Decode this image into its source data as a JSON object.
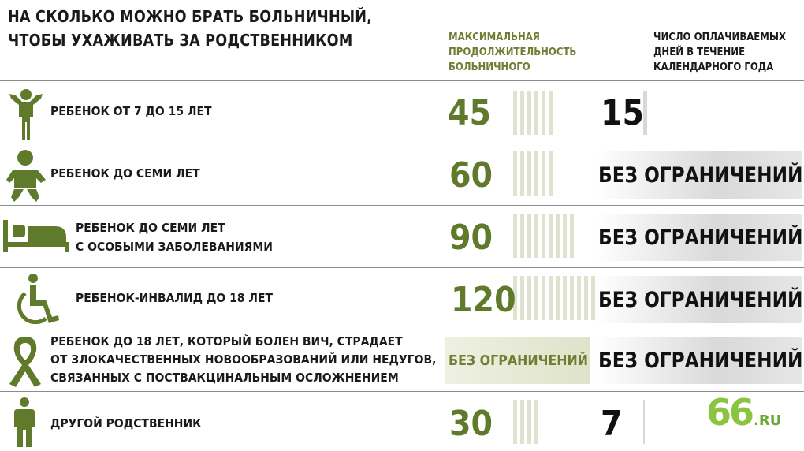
{
  "header": {
    "title_line1": "НА СКОЛЬКО МОЖНО БРАТЬ БОЛЬНИЧНЫЙ,",
    "title_line2": "ЧТОБЫ УХАЖИВАТЬ ЗА РОДСТВЕННИКОМ",
    "col_max_line1": "МАКСИМАЛЬНАЯ",
    "col_max_line2": "ПРОДОЛЖИТЕЛЬНОСТЬ",
    "col_max_line3": "БОЛЬНИЧНОГО",
    "col_paid_line1": "ЧИСЛО ОПЛАЧИВАЕМЫХ",
    "col_paid_line2": "ДНЕЙ В ТЕЧЕНИЕ",
    "col_paid_line3": "КАЛЕНДАРНОГО ГОДА"
  },
  "rows": [
    {
      "icon": "child-icon",
      "label": [
        "РЕБЕНОК ОТ 7 ДО 15 ЛЕТ"
      ],
      "max": "45",
      "paid": "15"
    },
    {
      "icon": "baby-icon",
      "label": [
        "РЕБЕНОК ДО СЕМИ ЛЕТ"
      ],
      "max": "60",
      "paid": "БЕЗ ОГРАНИЧЕНИЙ"
    },
    {
      "icon": "bed-icon",
      "label": [
        "РЕБЕНОК ДО СЕМИ ЛЕТ",
        "С ОСОБЫМИ ЗАБОЛЕВАНИЯМИ"
      ],
      "max": "90",
      "paid": "БЕЗ ОГРАНИЧЕНИЙ"
    },
    {
      "icon": "wheelchair-icon",
      "label": [
        "РЕБЕНОК-ИНВАЛИД ДО 18 ЛЕТ"
      ],
      "max": "120",
      "paid": "БЕЗ ОГРАНИЧЕНИЙ"
    },
    {
      "icon": "ribbon-icon",
      "label": [
        "РЕБЕНОК ДО 18 ЛЕТ, КОТОРЫЙ БОЛЕН ВИЧ, СТРАДАЕТ",
        "ОТ ЗЛОКАЧЕСТВЕННЫХ НОВООБРАЗОВАНИЙ ИЛИ НЕДУГОВ,",
        "СВЯЗАННЫХ С ПОСТВАКЦИНАЛЬНЫМ ОСЛОЖНЕНИЕМ"
      ],
      "max": "БЕЗ ОГРАНИЧЕНИЙ",
      "paid": "БЕЗ ОГРАНИЧЕНИЙ"
    },
    {
      "icon": "person-icon",
      "label": [
        "ДРУГОЙ РОДСТВЕННИК"
      ],
      "max": "30",
      "paid": "7"
    }
  ],
  "logo": {
    "main": "66",
    "suffix": ".RU"
  },
  "colors": {
    "accent_green": "#5f7a2b",
    "stripe": "#dfe2cf",
    "logo_green": "#8bc441"
  }
}
